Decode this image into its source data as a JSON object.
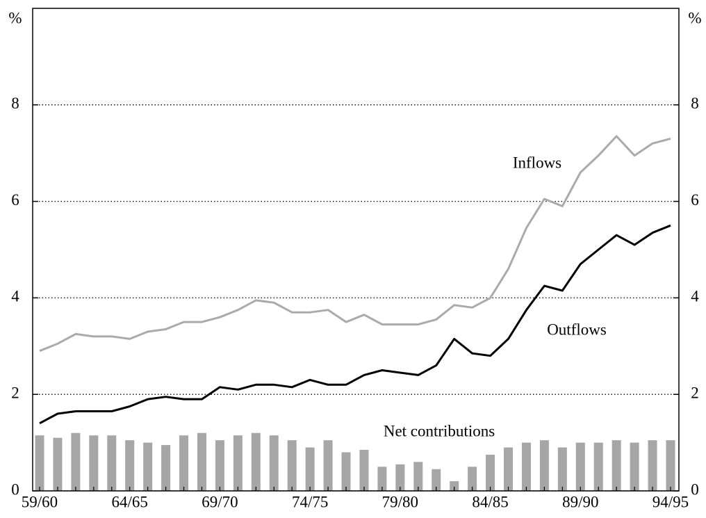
{
  "chart_data": {
    "type": "bar",
    "y_label": "%",
    "annotations": [
      "Inflows",
      "Outflows",
      "Net contributions"
    ],
    "categories": [
      "59/60",
      null,
      null,
      null,
      null,
      "64/65",
      null,
      null,
      null,
      null,
      "69/70",
      null,
      null,
      null,
      null,
      "74/75",
      null,
      null,
      null,
      null,
      "79/80",
      null,
      null,
      null,
      null,
      "84/85",
      null,
      null,
      null,
      null,
      "89/90",
      null,
      null,
      null,
      null,
      "94/95"
    ],
    "series": [
      {
        "name": "Net contributions",
        "type": "bar",
        "color": "#a6a6a6",
        "values": [
          1.15,
          1.1,
          1.2,
          1.15,
          1.15,
          1.05,
          1.0,
          0.95,
          1.15,
          1.2,
          1.05,
          1.15,
          1.2,
          1.15,
          1.05,
          0.9,
          1.05,
          0.8,
          0.85,
          0.5,
          0.55,
          0.6,
          0.45,
          0.2,
          0.5,
          0.75,
          0.9,
          1.0,
          1.05,
          0.9,
          1.0,
          1.0,
          1.05,
          1.0,
          1.05,
          1.05
        ]
      },
      {
        "name": "Inflows",
        "type": "line",
        "color": "#aaaaaa",
        "values": [
          2.9,
          3.05,
          3.25,
          3.2,
          3.2,
          3.15,
          3.3,
          3.35,
          3.5,
          3.5,
          3.6,
          3.75,
          3.95,
          3.9,
          3.7,
          3.7,
          3.75,
          3.5,
          3.65,
          3.45,
          3.45,
          3.45,
          3.55,
          3.85,
          3.8,
          4.0,
          4.6,
          5.45,
          6.05,
          5.9,
          6.6,
          6.95,
          7.35,
          6.95,
          7.2,
          7.3
        ]
      },
      {
        "name": "Outflows",
        "type": "line",
        "color": "#000000",
        "values": [
          1.4,
          1.6,
          1.65,
          1.65,
          1.65,
          1.75,
          1.9,
          1.95,
          1.9,
          1.9,
          2.15,
          2.1,
          2.2,
          2.2,
          2.15,
          2.3,
          2.2,
          2.2,
          2.4,
          2.5,
          2.45,
          2.4,
          2.6,
          3.15,
          2.85,
          2.8,
          3.15,
          3.75,
          4.25,
          4.15,
          4.7,
          5.0,
          5.3,
          5.1,
          5.35,
          5.5
        ]
      }
    ],
    "ylim": [
      0,
      10
    ],
    "yticks": [
      0,
      2,
      4,
      6,
      8
    ],
    "grid": true
  }
}
